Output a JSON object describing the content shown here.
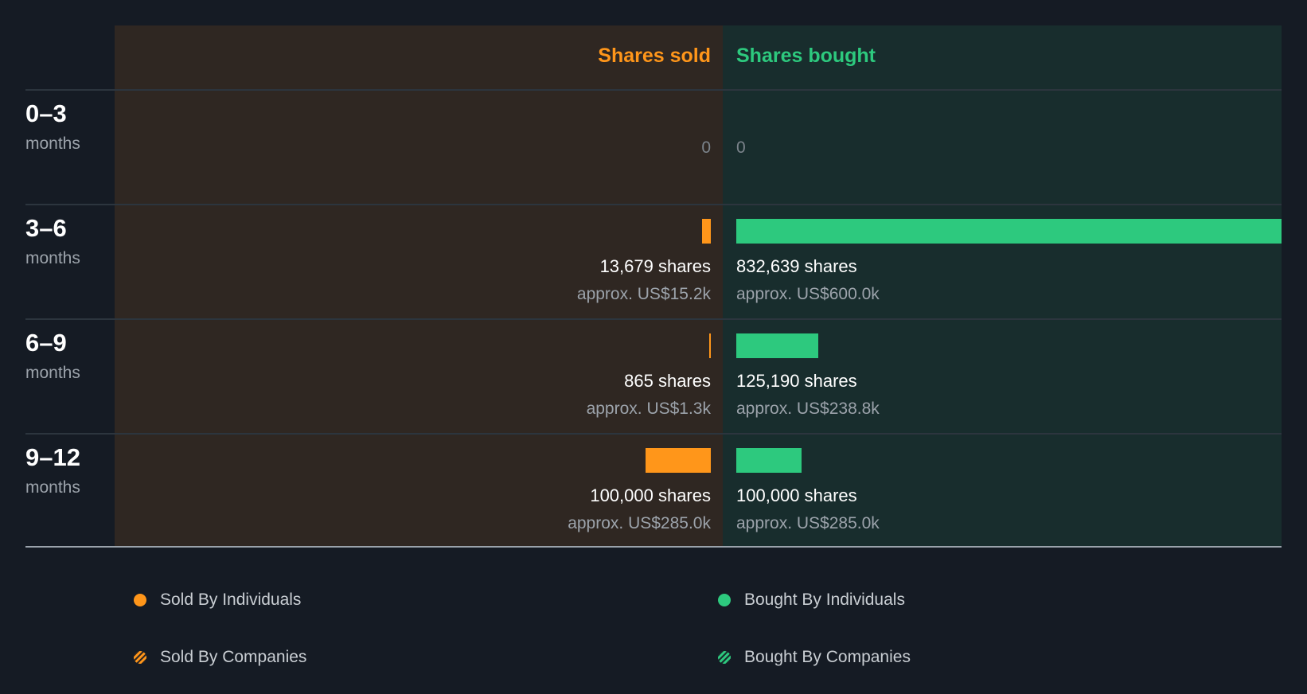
{
  "chart_data": {
    "type": "bar",
    "orientation": "diverging-horizontal",
    "headers": {
      "sold": "Shares sold",
      "bought": "Shares bought"
    },
    "max_shares": 832639,
    "rows": [
      {
        "period": "0–3",
        "unit": "months",
        "sold_shares": 0,
        "bought_shares": 0,
        "sold_zero": "0",
        "bought_zero": "0"
      },
      {
        "period": "3–6",
        "unit": "months",
        "sold_shares": 13679,
        "bought_shares": 832639,
        "sold_label": "13,679 shares",
        "sold_value": "approx. US$15.2k",
        "bought_label": "832,639 shares",
        "bought_value": "approx. US$600.0k"
      },
      {
        "period": "6–9",
        "unit": "months",
        "sold_shares": 865,
        "bought_shares": 125190,
        "sold_label": "865 shares",
        "sold_value": "approx. US$1.3k",
        "bought_label": "125,190 shares",
        "bought_value": "approx. US$238.8k"
      },
      {
        "period": "9–12",
        "unit": "months",
        "sold_shares": 100000,
        "bought_shares": 100000,
        "sold_label": "100,000 shares",
        "sold_value": "approx. US$285.0k",
        "bought_label": "100,000 shares",
        "bought_value": "approx. US$285.0k"
      }
    ],
    "legend": [
      "Sold By Individuals",
      "Bought By Individuals",
      "Sold By Companies",
      "Bought By Companies"
    ],
    "colors": {
      "sold": "#ff961a",
      "bought": "#2dc97e",
      "background": "#151b24",
      "sold_panel": "#2f2722",
      "bought_panel": "#182d2d"
    }
  }
}
